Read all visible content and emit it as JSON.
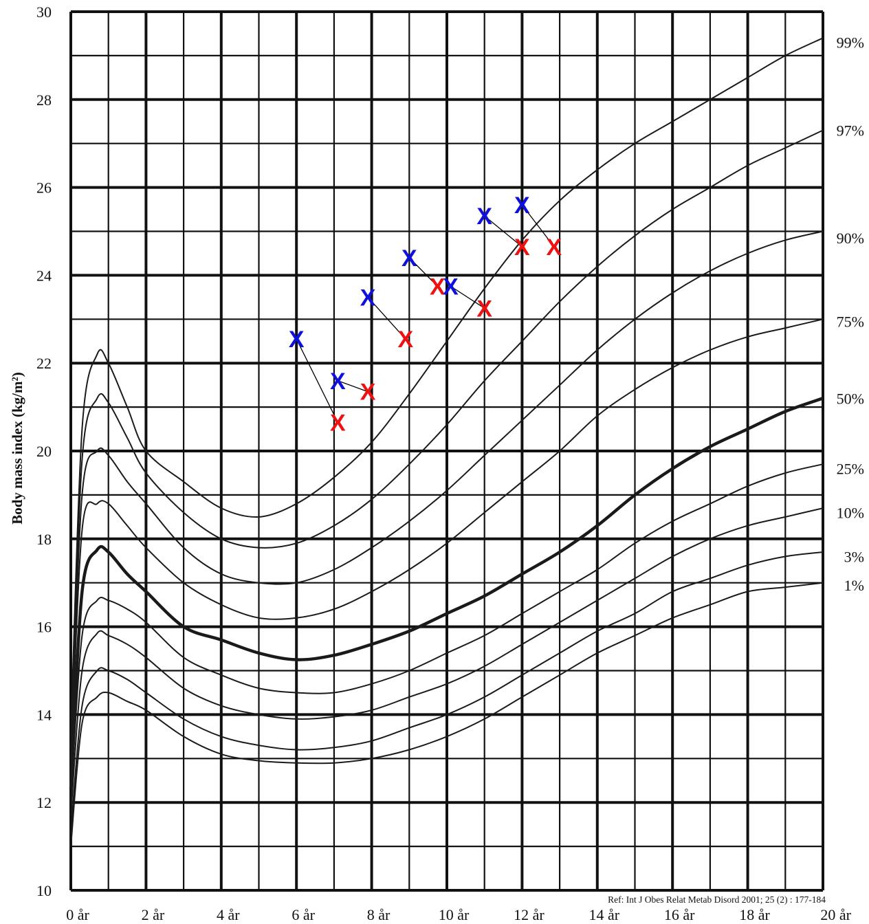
{
  "chart_data": {
    "type": "line",
    "ylabel": "Body mass index (kg/m²)",
    "xlabel": "",
    "xlim": [
      0,
      20
    ],
    "ylim": [
      10,
      30
    ],
    "x_ticks": [
      {
        "value": 0,
        "label": "0 år"
      },
      {
        "value": 2,
        "label": "2 år"
      },
      {
        "value": 4,
        "label": "4 år"
      },
      {
        "value": 6,
        "label": "6 år"
      },
      {
        "value": 8,
        "label": "8 år"
      },
      {
        "value": 10,
        "label": "10 år"
      },
      {
        "value": 12,
        "label": "12 år"
      },
      {
        "value": 14,
        "label": "14 år"
      },
      {
        "value": 16,
        "label": "16 år"
      },
      {
        "value": 18,
        "label": "18 år"
      },
      {
        "value": 20,
        "label": "20 år"
      }
    ],
    "y_ticks": [
      {
        "value": 10,
        "label": "10"
      },
      {
        "value": 12,
        "label": "12"
      },
      {
        "value": 14,
        "label": "14"
      },
      {
        "value": 16,
        "label": "16"
      },
      {
        "value": 18,
        "label": "18"
      },
      {
        "value": 20,
        "label": "20"
      },
      {
        "value": 22,
        "label": "22"
      },
      {
        "value": 24,
        "label": "24"
      },
      {
        "value": 26,
        "label": "26"
      },
      {
        "value": 28,
        "label": "28"
      },
      {
        "value": 30,
        "label": "30"
      }
    ],
    "grid": true,
    "reference": "Ref: Int J Obes Relat Metab Disord 2001; 25 (2) : 177-184",
    "series": [
      {
        "name": "99%",
        "bold": false,
        "x": [
          0,
          0.3,
          0.7,
          1,
          1.5,
          2,
          3,
          4,
          5,
          6,
          7,
          8,
          9,
          10,
          11,
          12,
          13,
          14,
          15,
          16,
          17,
          18,
          19,
          20
        ],
        "y": [
          13.5,
          20.5,
          22.2,
          22.0,
          21.0,
          20.0,
          19.3,
          18.7,
          18.5,
          18.8,
          19.4,
          20.2,
          21.3,
          22.5,
          23.7,
          24.8,
          25.7,
          26.4,
          27.0,
          27.5,
          28.0,
          28.5,
          29.0,
          29.4
        ]
      },
      {
        "name": "97%",
        "bold": false,
        "x": [
          0,
          0.3,
          0.7,
          1,
          1.5,
          2,
          3,
          4,
          5,
          6,
          7,
          8,
          9,
          10,
          11,
          12,
          13,
          14,
          15,
          16,
          17,
          18,
          19,
          20
        ],
        "y": [
          13.2,
          19.8,
          21.2,
          21.1,
          20.3,
          19.5,
          18.6,
          18.0,
          17.8,
          17.9,
          18.3,
          18.9,
          19.7,
          20.6,
          21.6,
          22.5,
          23.4,
          24.2,
          24.9,
          25.5,
          26.0,
          26.5,
          26.9,
          27.3
        ]
      },
      {
        "name": "90%",
        "bold": false,
        "x": [
          0,
          0.3,
          0.7,
          1,
          1.5,
          2,
          3,
          4,
          5,
          6,
          7,
          8,
          9,
          10,
          11,
          12,
          13,
          14,
          15,
          16,
          17,
          18,
          19,
          20
        ],
        "y": [
          13.0,
          19.0,
          20.0,
          19.9,
          19.3,
          18.8,
          17.8,
          17.2,
          17.0,
          17.0,
          17.3,
          17.8,
          18.4,
          19.1,
          19.9,
          20.7,
          21.5,
          22.3,
          23.0,
          23.6,
          24.1,
          24.5,
          24.8,
          25.0
        ]
      },
      {
        "name": "75%",
        "bold": false,
        "x": [
          0,
          0.3,
          0.7,
          1,
          1.5,
          2,
          3,
          4,
          5,
          6,
          7,
          8,
          9,
          10,
          11,
          12,
          13,
          14,
          15,
          16,
          17,
          18,
          19,
          20
        ],
        "y": [
          12.8,
          18.2,
          18.8,
          18.8,
          18.3,
          17.8,
          17.0,
          16.5,
          16.2,
          16.2,
          16.4,
          16.8,
          17.3,
          17.9,
          18.6,
          19.3,
          20.0,
          20.8,
          21.4,
          21.9,
          22.3,
          22.6,
          22.8,
          23.0
        ]
      },
      {
        "name": "50%",
        "bold": true,
        "x": [
          0,
          0.3,
          0.7,
          1,
          1.5,
          2,
          3,
          4,
          5,
          6,
          7,
          8,
          9,
          10,
          11,
          12,
          13,
          14,
          15,
          16,
          17,
          18,
          19,
          20
        ],
        "y": [
          12.3,
          16.8,
          17.75,
          17.7,
          17.2,
          16.8,
          16.0,
          15.7,
          15.4,
          15.25,
          15.35,
          15.6,
          15.9,
          16.3,
          16.7,
          17.2,
          17.7,
          18.3,
          19.0,
          19.6,
          20.1,
          20.5,
          20.9,
          21.2
        ]
      },
      {
        "name": "25%",
        "bold": false,
        "x": [
          0,
          0.3,
          0.7,
          1,
          1.5,
          2,
          3,
          4,
          5,
          6,
          7,
          8,
          9,
          10,
          11,
          12,
          13,
          14,
          15,
          16,
          17,
          18,
          19,
          20
        ],
        "y": [
          12.0,
          15.8,
          16.6,
          16.6,
          16.4,
          16.1,
          15.3,
          14.9,
          14.6,
          14.5,
          14.5,
          14.7,
          15.0,
          15.4,
          15.8,
          16.3,
          16.8,
          17.3,
          17.9,
          18.4,
          18.8,
          19.2,
          19.5,
          19.7
        ]
      },
      {
        "name": "10%",
        "bold": false,
        "x": [
          0,
          0.3,
          0.7,
          1,
          1.5,
          2,
          3,
          4,
          5,
          6,
          7,
          8,
          9,
          10,
          11,
          12,
          13,
          14,
          15,
          16,
          17,
          18,
          19,
          20
        ],
        "y": [
          11.7,
          15.0,
          15.85,
          15.8,
          15.6,
          15.3,
          14.6,
          14.2,
          14.0,
          13.9,
          13.95,
          14.1,
          14.4,
          14.7,
          15.1,
          15.6,
          16.1,
          16.6,
          17.1,
          17.6,
          18.0,
          18.3,
          18.5,
          18.7
        ]
      },
      {
        "name": "3%",
        "bold": false,
        "x": [
          0,
          0.3,
          0.7,
          1,
          1.5,
          2,
          3,
          4,
          5,
          6,
          7,
          8,
          9,
          10,
          11,
          12,
          13,
          14,
          15,
          16,
          17,
          18,
          19,
          20
        ],
        "y": [
          11.3,
          14.2,
          15.0,
          15.0,
          14.8,
          14.5,
          13.9,
          13.5,
          13.3,
          13.2,
          13.25,
          13.4,
          13.7,
          14.0,
          14.4,
          14.9,
          15.4,
          15.9,
          16.3,
          16.8,
          17.1,
          17.4,
          17.6,
          17.7
        ]
      },
      {
        "name": "1%",
        "bold": false,
        "x": [
          0,
          0.3,
          0.7,
          1,
          1.5,
          2,
          3,
          4,
          5,
          6,
          7,
          8,
          9,
          10,
          11,
          12,
          13,
          14,
          15,
          16,
          17,
          18,
          19,
          20
        ],
        "y": [
          11.0,
          13.8,
          14.4,
          14.5,
          14.3,
          14.1,
          13.5,
          13.1,
          12.95,
          12.9,
          12.9,
          13.0,
          13.2,
          13.5,
          13.9,
          14.4,
          14.9,
          15.4,
          15.8,
          16.2,
          16.5,
          16.8,
          16.9,
          17.0
        ]
      }
    ],
    "percentile_labels": [
      {
        "label": "99%",
        "y": 29.3
      },
      {
        "label": "97%",
        "y": 27.3
      },
      {
        "label": "90%",
        "y": 24.85
      },
      {
        "label": "75%",
        "y": 22.95
      },
      {
        "label": "50%",
        "y": 21.2
      },
      {
        "label": "25%",
        "y": 19.6
      },
      {
        "label": "10%",
        "y": 18.6
      },
      {
        "label": "3%",
        "y": 17.6
      },
      {
        "label": "1%",
        "y": 16.95
      }
    ],
    "marker_pairs": [
      {
        "from": {
          "x": 6.0,
          "y": 22.55
        },
        "to": {
          "x": 7.1,
          "y": 20.65
        }
      },
      {
        "from": {
          "x": 7.1,
          "y": 21.6
        },
        "to": {
          "x": 7.9,
          "y": 21.35
        }
      },
      {
        "from": {
          "x": 7.9,
          "y": 23.5
        },
        "to": {
          "x": 8.9,
          "y": 22.55
        }
      },
      {
        "from": {
          "x": 9.0,
          "y": 24.4
        },
        "to": {
          "x": 9.75,
          "y": 23.75
        }
      },
      {
        "from": {
          "x": 10.1,
          "y": 23.75
        },
        "to": {
          "x": 11.0,
          "y": 23.25
        }
      },
      {
        "from": {
          "x": 11.0,
          "y": 25.35
        },
        "to": {
          "x": 12.0,
          "y": 24.65
        }
      },
      {
        "from": {
          "x": 12.0,
          "y": 25.6
        },
        "to": {
          "x": 12.85,
          "y": 24.65
        }
      }
    ],
    "marker_symbol": "X",
    "colors": {
      "from_marker": "#1010dd",
      "to_marker": "#ee1111",
      "curve": "#1a1a1a",
      "grid": "#111111"
    }
  }
}
